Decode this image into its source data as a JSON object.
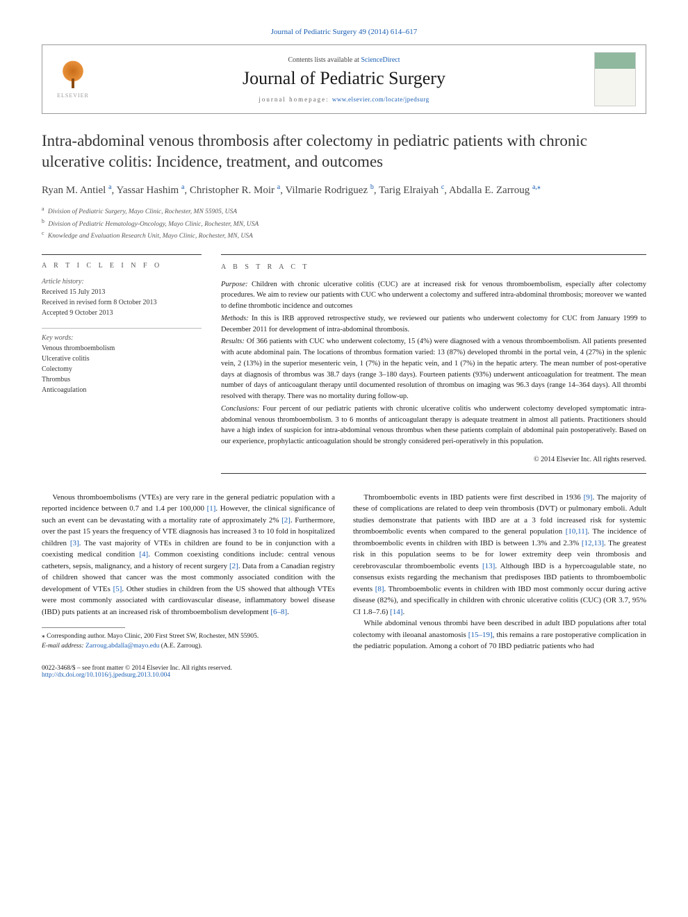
{
  "journal_ref": {
    "text": "Journal of Pediatric Surgery 49 (2014) 614–617"
  },
  "header": {
    "contents_prefix": "Contents lists available at ",
    "contents_link": "ScienceDirect",
    "journal_name": "Journal of Pediatric Surgery",
    "homepage_prefix": "journal homepage: ",
    "homepage_link": "www.elsevier.com/locate/jpedsurg",
    "publisher_name": "ELSEVIER"
  },
  "title": "Intra-abdominal venous thrombosis after colectomy in pediatric patients with chronic ulcerative colitis: Incidence, treatment, and outcomes",
  "authors_line": "Ryan M. Antiel ᵃ, Yassar Hashim ᵃ, Christopher R. Moir ᵃ, Vilmarie Rodriguez ᵇ, Tarig Elraiyah ᶜ, Abdalla E. Zarroug ᵃ٫⁎",
  "authors": [
    {
      "name": "Ryan M. Antiel",
      "sup": "a"
    },
    {
      "name": "Yassar Hashim",
      "sup": "a"
    },
    {
      "name": "Christopher R. Moir",
      "sup": "a"
    },
    {
      "name": "Vilmarie Rodriguez",
      "sup": "b"
    },
    {
      "name": "Tarig Elraiyah",
      "sup": "c"
    },
    {
      "name": "Abdalla E. Zarroug",
      "sup": "a",
      "corr": true
    }
  ],
  "affiliations": [
    {
      "sup": "a",
      "text": "Division of Pediatric Surgery, Mayo Clinic, Rochester, MN 55905, USA"
    },
    {
      "sup": "b",
      "text": "Division of Pediatric Hematology-Oncology, Mayo Clinic, Rochester, MN, USA"
    },
    {
      "sup": "c",
      "text": "Knowledge and Evaluation Research Unit, Mayo Clinic, Rochester, MN, USA"
    }
  ],
  "article_info": {
    "label": "A R T I C L E  I N F O",
    "history_head": "Article history:",
    "history": [
      "Received 15 July 2013",
      "Received in revised form 8 October 2013",
      "Accepted 9 October 2013"
    ],
    "keywords_head": "Key words:",
    "keywords": [
      "Venous thromboembolism",
      "Ulcerative colitis",
      "Colectomy",
      "Thrombus",
      "Anticoagulation"
    ]
  },
  "abstract": {
    "label": "A B S T R A C T",
    "purpose": "Purpose: Children with chronic ulcerative colitis (CUC) are at increased risk for venous thromboembolism, especially after colectomy procedures. We aim to review our patients with CUC who underwent a colectomy and suffered intra-abdominal thrombosis; moreover we wanted to define thrombotic incidence and outcomes",
    "methods": "Methods: In this is IRB approved retrospective study, we reviewed our patients who underwent colectomy for CUC from January 1999 to December 2011 for development of intra-abdominal thrombosis.",
    "results": "Results: Of 366 patients with CUC who underwent colectomy, 15 (4%) were diagnosed with a venous thromboembolism. All patients presented with acute abdominal pain. The locations of thrombus formation varied: 13 (87%) developed thrombi in the portal vein, 4 (27%) in the splenic vein, 2 (13%) in the superior mesenteric vein, 1 (7%) in the hepatic vein, and 1 (7%) in the hepatic artery. The mean number of post-operative days at diagnosis of thrombus was 38.7 days (range 3–180 days). Fourteen patients (93%) underwent anticoagulation for treatment. The mean number of days of anticoagulant therapy until documented resolution of thrombus on imaging was 96.3 days (range 14–364 days). All thrombi resolved with therapy. There was no mortality during follow-up.",
    "conclusions": "Conclusions: Four percent of our pediatric patients with chronic ulcerative colitis who underwent colectomy developed symptomatic intra-abdominal venous thromboembolism. 3 to 6 months of anticoagulant therapy is adequate treatment in almost all patients. Practitioners should have a high index of suspicion for intra-abdominal venous thrombus when these patients complain of abdominal pain postoperatively. Based on our experience, prophylactic anticoagulation should be strongly considered peri-operatively in this population.",
    "copyright": "© 2014 Elsevier Inc. All rights reserved."
  },
  "body": {
    "p1": "Venous thromboembolisms (VTEs) are very rare in the general pediatric population with a reported incidence between 0.7 and 1.4 per 100,000 [1]. However, the clinical significance of such an event can be devastating with a mortality rate of approximately 2% [2]. Furthermore, over the past 15 years the frequency of VTE diagnosis has increased 3 to 10 fold in hospitalized children [3]. The vast majority of VTEs in children are found to be in conjunction with a coexisting medical condition [4]. Common coexisting conditions include: central venous catheters, sepsis, malignancy, and a history of recent surgery [2]. Data from a Canadian registry of children showed that cancer was the most commonly associated condition with the development of VTEs [5]. Other studies in children from the US showed that although VTEs were most commonly associated with cardiovascular disease, inflammatory bowel disease (IBD) puts patients at an increased risk of thromboembolism development [6–8].",
    "p2": "Thromboembolic events in IBD patients were first described in 1936 [9]. The majority of these of complications are related to deep vein thrombosis (DVT) or pulmonary emboli. Adult studies demonstrate that patients with IBD are at a 3 fold increased risk for systemic thromboembolic events when compared to the general population [10,11]. The incidence of thromboembolic events in children with IBD is between 1.3% and 2.3% [12,13]. The greatest risk in this population seems to be for lower extremity deep vein thrombosis and cerebrovascular thromboembolic events [13]. Although IBD is a hypercoagulable state, no consensus exists regarding the mechanism that predisposes IBD patients to thromboembolic events [8]. Thromboembolic events in children with IBD most commonly occur during active disease (82%), and specifically in children with chronic ulcerative colitis (CUC) (OR 3.7, 95% CI 1.8–7.6) [14].",
    "p3": "While abdominal venous thrombi have been described in adult IBD populations after total colectomy with ileoanal anastomosis [15–19], this remains a rare postoperative complication in the pediatric population. Among a cohort of 70 IBD pediatric patients who had"
  },
  "footnote": {
    "corr": "⁎ Corresponding author. Mayo Clinic, 200 First Street SW, Rochester, MN 55905.",
    "email_label": "E-mail address: ",
    "email": "Zarroug.abdalla@mayo.edu",
    "email_suffix": " (A.E. Zarroug)."
  },
  "bottom": {
    "issn": "0022-3468/$ – see front matter © 2014 Elsevier Inc. All rights reserved.",
    "doi": "http://dx.doi.org/10.1016/j.jpedsurg.2013.10.004"
  },
  "colors": {
    "link": "#1a5eb3",
    "text": "#1a1a1a",
    "rule": "#333333"
  }
}
